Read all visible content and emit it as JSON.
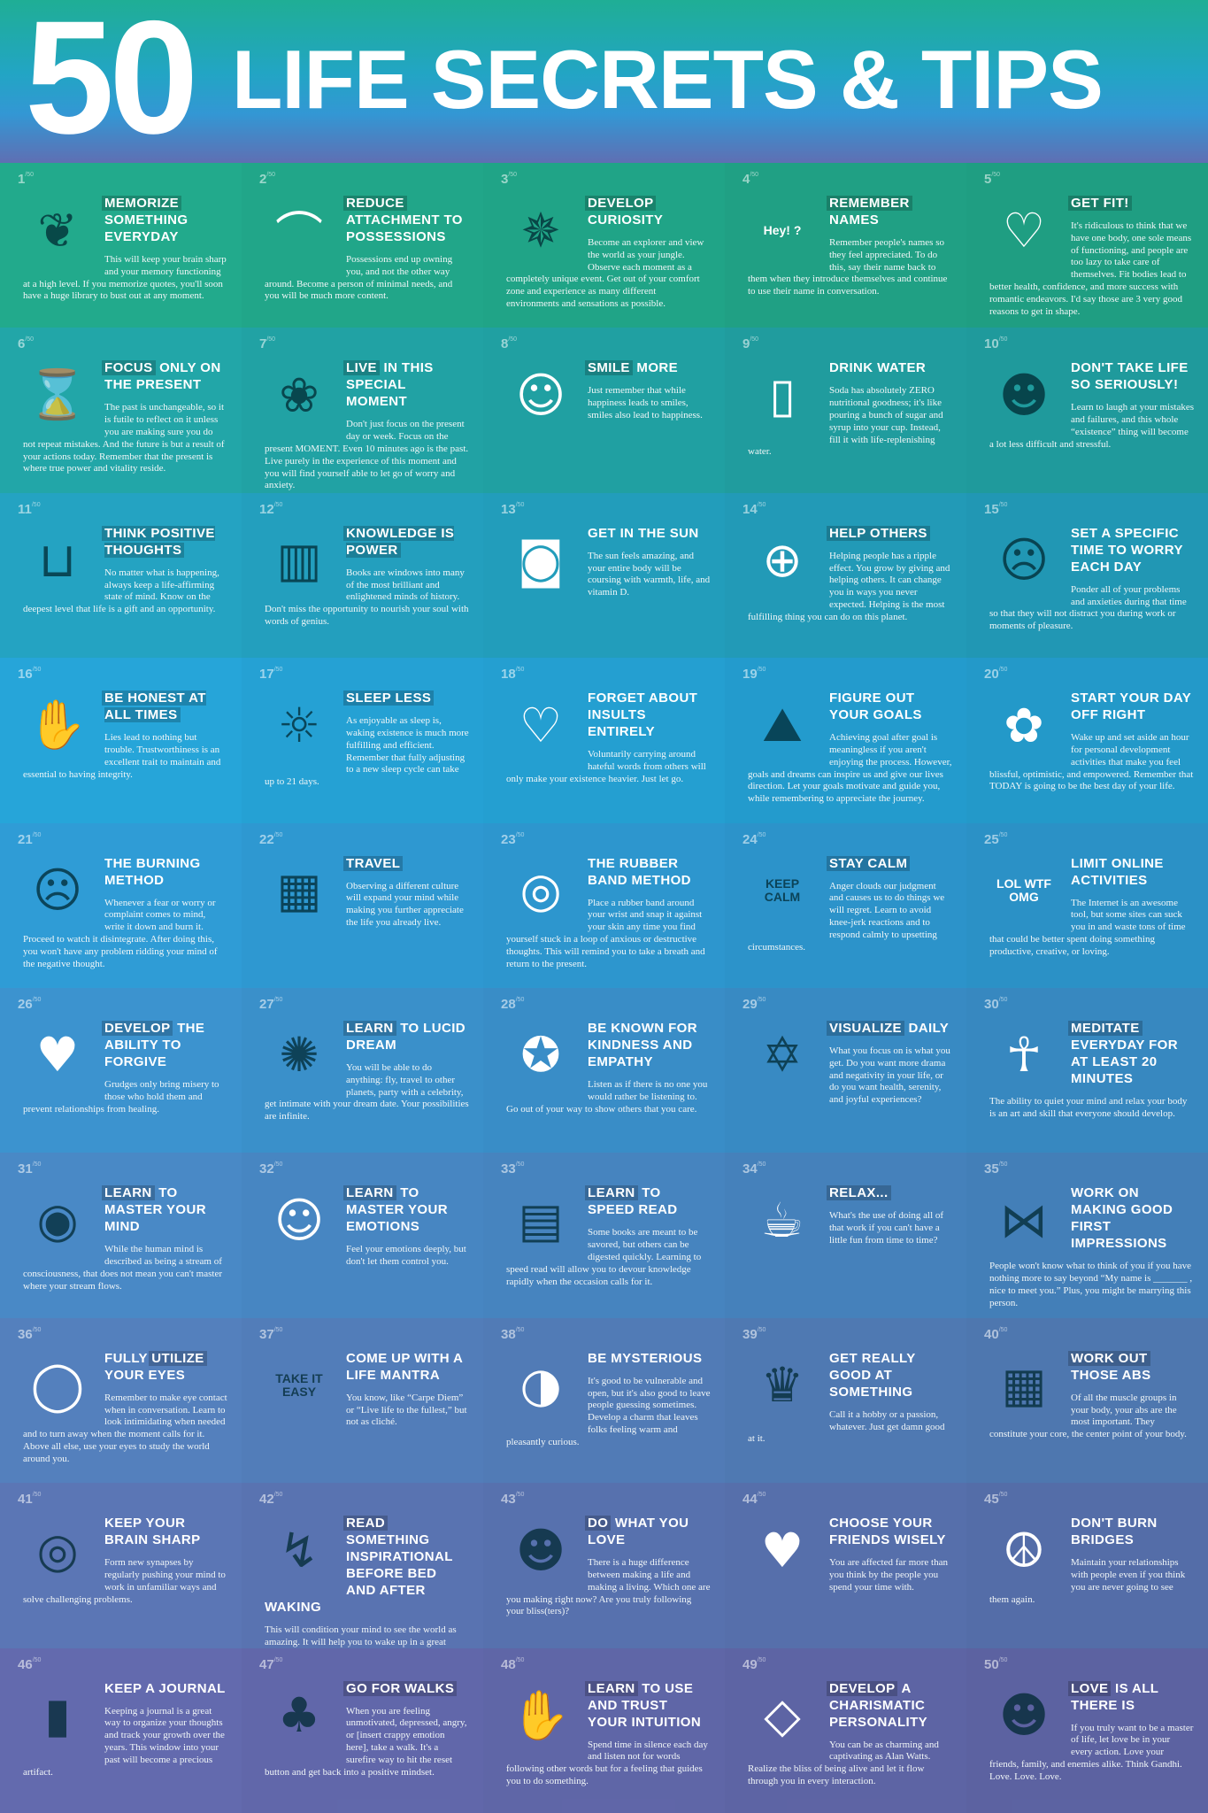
{
  "header": {
    "number": "50",
    "title": "LIFE SECRETS & TIPS"
  },
  "total_label": "/50",
  "row_colors": [
    "#22aa8c",
    "#22a6a8",
    "#24a3c2",
    "#26a5d9",
    "#2f9cd6",
    "#3c93cf",
    "#4989c6",
    "#5480bd",
    "#5b76b5",
    "#636aae"
  ],
  "tips": [
    {
      "n": "1",
      "icon": "brain-icon",
      "pre": "",
      "hl": "MEMORIZE",
      "rest": "SOMETHING EVERYDAY",
      "body": "This will keep your brain sharp and your memory functioning at a high level. If you memorize quotes, you'll soon have a huge library to bust out at any moment."
    },
    {
      "n": "2",
      "icon": "hanger-icon",
      "pre": "",
      "hl": "REDUCE",
      "rest": "ATTACHMENT TO POSSESSIONS",
      "body": "Possessions end up owning you, and not the other way around. Become a person of minimal needs, and you will be much more content."
    },
    {
      "n": "3",
      "icon": "compass-icon",
      "pre": "",
      "hl": "DEVELOP",
      "rest": "CURIOSITY",
      "body": "Become an explorer and view the world as your jungle. Observe each moment as a completely unique event. Get out of your comfort zone and experience as many different environments and sensations as possible."
    },
    {
      "n": "4",
      "icon": "speech-bubbles-icon",
      "icon_text": "Hey! ?",
      "pre": "",
      "hl": "REMEMBER",
      "rest": "NAMES",
      "body": "Remember people's names so they feel appreciated. To do this, say their name back to them when they introduce themselves and continue to use their name in conversation."
    },
    {
      "n": "5",
      "icon": "heart-pulse-icon",
      "pre": "",
      "hl": "GET FIT!",
      "rest": "",
      "body": "It's ridiculous to think that we have one body, one sole means of functioning, and people are too lazy to take care of themselves. Fit bodies lead to better health, confidence, and more success with romantic endeavors. I'd say those are 3 very good reasons to get in shape."
    },
    {
      "n": "6",
      "icon": "hourglass-icon",
      "pre": "",
      "hl": "FOCUS",
      "rest": "ONLY ON THE PRESENT",
      "body": "The past is unchangeable, so it is futile to reflect on it unless you are making sure you do not repeat mistakes. And the future is but a result of your actions today. Remember that the present is where true power and vitality reside."
    },
    {
      "n": "7",
      "icon": "butterfly-icon",
      "pre": "",
      "hl": "LIVE",
      "rest": "IN THIS SPECIAL MOMENT",
      "body": "Don't just focus on the present day or week. Focus on the present MOMENT. Even 10 minutes ago is the past. Live purely in the experience of this moment and you will find yourself able to let go of worry and anxiety."
    },
    {
      "n": "8",
      "icon": "smiling-faces-icon",
      "pre": "",
      "hl": "SMILE",
      "rest": "MORE",
      "body": "Just remember that while happiness leads to smiles, smiles also lead to happiness."
    },
    {
      "n": "9",
      "icon": "water-bottle-icon",
      "pre": "DRINK WATER",
      "hl": "",
      "rest": "",
      "body": "Soda has absolutely ZERO nutritional goodness; it's like pouring a bunch of sugar and syrup into your cup. Instead, fill it with life-replenishing water."
    },
    {
      "n": "10",
      "icon": "einstein-face-icon",
      "pre": "DON'T TAKE LIFE SO SERIOUSLY!",
      "hl": "",
      "rest": "",
      "body": "Learn to laugh at your mistakes and failures, and this whole “existence” thing will become a lot less difficult and stressful."
    },
    {
      "n": "11",
      "icon": "glass-icon",
      "pre": "",
      "hl": "THINK POSITIVE THOUGHTS",
      "rest": "",
      "body": "No matter what is happening, always keep a life-affirming state of mind. Know on the deepest level that life is a gift and an opportunity."
    },
    {
      "n": "12",
      "icon": "books-icon",
      "pre": "",
      "hl": "KNOWLEDGE IS POWER",
      "rest": "",
      "body": "Books are windows into many of the most brilliant and enlightened minds of history. Don't miss the opportunity to nourish your soul with words of genius."
    },
    {
      "n": "13",
      "icon": "sunglasses-icon",
      "pre": "GET IN THE SUN",
      "hl": "",
      "rest": "",
      "body": "The sun feels amazing, and your entire body will be coursing with warmth, life, and vitamin D."
    },
    {
      "n": "14",
      "icon": "lifebuoy-icon",
      "pre": "",
      "hl": "HELP OTHERS",
      "rest": "",
      "body": "Helping people has a ripple effect. You grow by giving and helping others. It can change you in ways you never expected. Helping is the most fulfilling thing you can do on this planet."
    },
    {
      "n": "15",
      "icon": "worried-head-icon",
      "pre": "SET A SPECIFIC TIME TO WORRY EACH DAY",
      "hl": "",
      "rest": "",
      "body": "Ponder all of your problems and anxieties during that time so that they will not distract you during work or moments of pleasure."
    },
    {
      "n": "16",
      "icon": "raised-hand-icon",
      "pre": "",
      "hl": "BE HONEST AT ALL TIMES",
      "rest": "",
      "body": "Lies lead to nothing but trouble. Trustworthiness is an excellent trait to maintain and essential to having integrity."
    },
    {
      "n": "17",
      "icon": "sunrise-icon",
      "pre": "",
      "hl": "SLEEP LESS",
      "rest": "",
      "body": "As enjoyable as sleep is, waking existence is much more fulfilling and efficient. Remember that fully adjusting to a new sleep cycle can take up to 21 days."
    },
    {
      "n": "18",
      "icon": "broken-heart-icon",
      "pre": "FORGET ABOUT INSULTS ENTIRELY",
      "hl": "",
      "rest": "",
      "body": "Voluntarily carrying around hateful words from others will only make your existence heavier. Just let go."
    },
    {
      "n": "19",
      "icon": "mountain-flag-icon",
      "pre": "FIGURE OUT YOUR GOALS",
      "hl": "",
      "rest": "",
      "body": "Achieving goal after goal is meaningless if you aren't enjoying the process. However, goals and dreams can inspire us and give our lives direction. Let your goals motivate and guide you, while remembering to appreciate the journey."
    },
    {
      "n": "20",
      "icon": "lotus-icon",
      "pre": "START YOUR DAY OFF RIGHT",
      "hl": "",
      "rest": "",
      "body": "Wake up and set aside an hour for personal development activities that make you feel blissful, optimistic, and empowered. Remember that TODAY is going to be the best day of your life."
    },
    {
      "n": "21",
      "icon": "head-flame-icon",
      "pre": "THE BURNING METHOD",
      "hl": "",
      "rest": "",
      "body": "Whenever a fear or worry or complaint comes to mind, write it down and burn it. Proceed to watch it disintegrate. After doing this, you won't have any problem ridding your mind of the negative thought."
    },
    {
      "n": "22",
      "icon": "map-icon",
      "pre": "",
      "hl": "TRAVEL",
      "rest": "",
      "body": "Observing a different culture will expand your mind while making you further appreciate the life you already live."
    },
    {
      "n": "23",
      "icon": "rubber-band-icon",
      "pre": "THE RUBBER BAND METHOD",
      "hl": "",
      "rest": "",
      "body": "Place a rubber band around your wrist and snap it against your skin any time you find yourself stuck in a loop of anxious or destructive thoughts. This will remind you to take a breath and return to the present."
    },
    {
      "n": "24",
      "icon": "keep-calm-poster-icon",
      "icon_text": "KEEP CALM",
      "pre": "",
      "hl": "STAY CALM",
      "rest": "",
      "body": "Anger clouds our judgment and causes us to do things we will regret. Learn to avoid knee-jerk reactions and to respond calmly to upsetting circumstances."
    },
    {
      "n": "25",
      "icon": "chat-bubbles-icon",
      "icon_text": "LOL WTF OMG",
      "pre": "LIMIT ONLINE ACTIVITIES",
      "hl": "",
      "rest": "",
      "body": "The Internet is an awesome tool, but some sites can suck you in and waste tons of time that could be better spent doing something productive, creative, or loving."
    },
    {
      "n": "26",
      "icon": "hands-heart-icon",
      "pre": "",
      "hl": "DEVELOP",
      "rest": "THE ABILITY TO FORGIVE",
      "body": "Grudges only bring misery to those who hold them and prevent relationships from healing."
    },
    {
      "n": "27",
      "icon": "dreamcatcher-icon",
      "pre": "",
      "hl": "LEARN",
      "rest": "TO LUCID DREAM",
      "body": "You will be able to do anything: fly, travel to other planets, party with a celebrity, get intimate with your dream date. Your possibilities are infinite."
    },
    {
      "n": "28",
      "icon": "medal-icon",
      "pre": "BE KNOWN FOR KINDNESS AND EMPATHY",
      "hl": "",
      "rest": "",
      "body": "Listen as if there is no one you would rather be listening to. Go out of your way to show others that you care."
    },
    {
      "n": "29",
      "icon": "star-eye-icon",
      "pre": "",
      "hl": "VISUALIZE",
      "rest": "DAILY",
      "body": "What you focus on is what you get. Do you want more drama and negativity in your life, or do you want health, serenity, and joyful experiences?"
    },
    {
      "n": "30",
      "icon": "meditation-icon",
      "pre": "",
      "hl": "MEDITATE",
      "rest": "EVERYDAY FOR AT LEAST 20 MINUTES",
      "body": "The ability to quiet your mind and relax your body is an art and skill that everyone should develop."
    },
    {
      "n": "31",
      "icon": "radar-icon",
      "pre": "",
      "hl": "LEARN",
      "rest": "TO MASTER YOUR MIND",
      "body": "While the human mind is described as being a stream of consciousness, that does not mean you can't master where your stream flows."
    },
    {
      "n": "32",
      "icon": "theater-masks-icon",
      "pre": "",
      "hl": "LEARN",
      "rest": "TO MASTER YOUR EMOTIONS",
      "body": "Feel your emotions deeply, but don't let them control you."
    },
    {
      "n": "33",
      "icon": "book-stopwatch-icon",
      "pre": "",
      "hl": "LEARN",
      "rest": "TO SPEED READ",
      "body": "Some books are meant to be savored, but others can be digested quickly. Learning to speed read will allow you to devour knowledge rapidly when the occasion calls for it."
    },
    {
      "n": "34",
      "icon": "coffee-cup-icon",
      "pre": "",
      "hl": "RELAX...",
      "rest": "",
      "body": "What's the use of doing all of that work if you can't have a little fun from time to time?"
    },
    {
      "n": "35",
      "icon": "glasses-bowtie-icon",
      "pre": "WORK ON MAKING GOOD FIRST IMPRESSIONS",
      "hl": "",
      "rest": "",
      "body": "People won't know what to think of you if you have nothing more to say beyond “My name is _______ , nice to meet you.” Plus, you might be marrying this person."
    },
    {
      "n": "36",
      "icon": "mirror-icon",
      "pre": "FULLY ",
      "hl": "UTILIZE",
      "rest": "YOUR EYES",
      "body": "Remember to make eye contact when in conversation. Learn to look intimidating when needed and to turn away when the moment calls for it. Above all else, use your eyes to study the world around you."
    },
    {
      "n": "37",
      "icon": "take-it-easy-badge-icon",
      "icon_text": "TAKE IT EASY",
      "pre": "COME UP WITH A LIFE MANTRA",
      "hl": "",
      "rest": "",
      "body": "You know, like “Carpe Diem” or “Live life to the fullest,” but not as cliché."
    },
    {
      "n": "38",
      "icon": "mask-icon",
      "pre": "BE MYSTERIOUS",
      "hl": "",
      "rest": "",
      "body": "It's good to be vulnerable and open, but it's also good to leave people guessing sometimes. Develop a charm that leaves folks feeling warm and pleasantly curious."
    },
    {
      "n": "39",
      "icon": "trophy-icon",
      "pre": "GET REALLY GOOD AT SOMETHING",
      "hl": "",
      "rest": "",
      "body": "Call it a hobby or a passion, whatever. Just get damn good at it."
    },
    {
      "n": "40",
      "icon": "abs-icon",
      "pre": "",
      "hl": "WORK OUT",
      "rest": "THOSE ABS",
      "body": "Of all the muscle groups in your body, your abs are the most important. They constitute your core, the center point of your body."
    },
    {
      "n": "41",
      "icon": "head-spiral-icon",
      "pre": "KEEP YOUR BRAIN SHARP",
      "hl": "",
      "rest": "",
      "body": "Form new synapses by regularly pushing your mind to work in unfamiliar ways and solve challenging problems."
    },
    {
      "n": "42",
      "icon": "head-lightning-icon",
      "pre": "",
      "hl": "READ",
      "rest": "SOMETHING INSPIRATIONAL BEFORE BED AND AFTER WAKING",
      "body": "This will condition your mind to see the world as amazing. It will help you to wake up in a great mood and to carry that vibe throughout the day."
    },
    {
      "n": "43",
      "icon": "man-face-icon",
      "pre": "",
      "hl": "DO",
      "rest": "WHAT YOU LOVE",
      "body": "There is a huge difference between making a life and making a living. Which one are you making right now? Are you truly following your bliss(ters)?"
    },
    {
      "n": "44",
      "icon": "heart-handshake-icon",
      "pre": "CHOOSE YOUR FRIENDS WISELY",
      "hl": "",
      "rest": "",
      "body": "You are affected far more than you think by the people you spend your time with."
    },
    {
      "n": "45",
      "icon": "peace-icon",
      "pre": "DON'T BURN BRIDGES",
      "hl": "",
      "rest": "",
      "body": "Maintain your relationships with people even if you think you are never going to see them again."
    },
    {
      "n": "46",
      "icon": "journal-icon",
      "pre": "KEEP A JOURNAL",
      "hl": "",
      "rest": "",
      "body": "Keeping a journal is a great way to organize your thoughts and track your growth over the years. This window into your past will become a precious artifact."
    },
    {
      "n": "47",
      "icon": "trees-icon",
      "pre": "",
      "hl": "GO FOR WALKS",
      "rest": "",
      "body": "When you are feeling unmotivated, depressed, angry, or [insert crappy emotion here], take a walk. It's a surefire way to hit the reset button and get back into a positive mindset."
    },
    {
      "n": "48",
      "icon": "hamsa-hand-icon",
      "pre": "",
      "hl": "LEARN",
      "rest": "TO USE AND TRUST YOUR INTUITION",
      "body": "Spend time in silence each day and listen not for words following other words but for a feeling that guides you to do something."
    },
    {
      "n": "49",
      "icon": "diamond-icon",
      "pre": "",
      "hl": "DEVELOP",
      "rest": "A CHARISMATIC PERSONALITY",
      "body": "You can be as charming and captivating as Alan Watts. Realize the bliss of being alive and let it flow through you in every interaction."
    },
    {
      "n": "50",
      "icon": "gandhi-face-icon",
      "pre": "",
      "hl": "LOVE",
      "rest": "IS ALL THERE IS",
      "body": "If you truly want to be a master of life, let love be in your every action. Love your friends, family, and enemies alike. Think Gandhi. Love. Love. Love."
    }
  ]
}
